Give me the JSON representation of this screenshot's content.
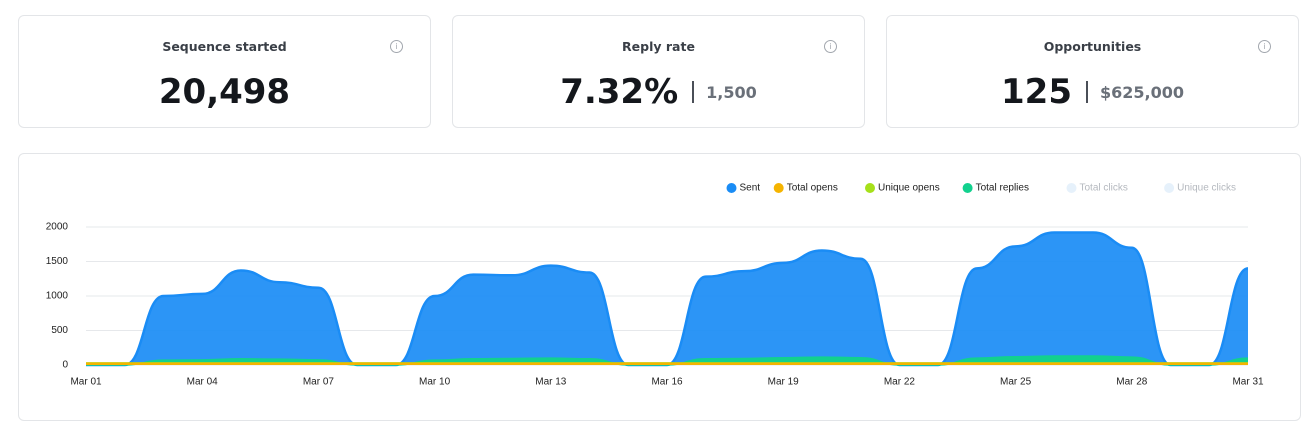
{
  "cards": [
    {
      "label": "Sequence started",
      "value": "20,498"
    },
    {
      "label": "Reply rate",
      "value": "7.32%",
      "secondary": "1,500"
    },
    {
      "label": "Opportunities",
      "value": "125",
      "secondary": "$625,000"
    }
  ],
  "chart_data": {
    "type": "area",
    "categories": [
      "Mar 01",
      null,
      null,
      "Mar 04",
      null,
      null,
      "Mar 07",
      null,
      null,
      "Mar 10",
      null,
      null,
      "Mar 13",
      null,
      null,
      "Mar 16",
      null,
      null,
      "Mar 19",
      null,
      null,
      "Mar 22",
      null,
      null,
      "Mar 25",
      null,
      null,
      "Mar 28",
      null,
      null,
      "Mar 31"
    ],
    "series": [
      {
        "name": "Sent",
        "color": "#1a8cf5",
        "values": [
          0,
          0,
          1000,
          1030,
          1370,
          1200,
          1120,
          0,
          0,
          1000,
          1310,
          1300,
          1440,
          1340,
          0,
          0,
          1280,
          1360,
          1480,
          1660,
          1540,
          0,
          0,
          1400,
          1720,
          1920,
          1920,
          1700,
          0,
          0,
          1400
        ]
      },
      {
        "name": "Total opens",
        "color": "#f5b400",
        "values": [
          25,
          25,
          25,
          25,
          25,
          25,
          25,
          25,
          25,
          25,
          25,
          25,
          25,
          25,
          25,
          25,
          25,
          25,
          25,
          25,
          25,
          25,
          25,
          25,
          25,
          25,
          25,
          25,
          25,
          25,
          25
        ]
      },
      {
        "name": "Unique opens",
        "color": "#a6e01a",
        "values": [
          30,
          30,
          30,
          30,
          30,
          30,
          30,
          30,
          30,
          30,
          30,
          30,
          30,
          30,
          30,
          30,
          30,
          30,
          30,
          30,
          30,
          30,
          30,
          30,
          30,
          30,
          30,
          30,
          30,
          30,
          30
        ]
      },
      {
        "name": "Total replies",
        "color": "#12d18e",
        "values": [
          0,
          0,
          70,
          75,
          90,
          85,
          75,
          0,
          0,
          70,
          90,
          95,
          100,
          90,
          0,
          0,
          90,
          95,
          105,
          115,
          105,
          0,
          0,
          100,
          120,
          130,
          130,
          115,
          0,
          0,
          100
        ]
      },
      {
        "name": "Total clicks",
        "color": "#e6f1fb",
        "visible": false
      },
      {
        "name": "Unique clicks",
        "color": "#e6f1fb",
        "visible": false
      }
    ],
    "ylim": [
      0,
      2000
    ],
    "yticks": [
      0,
      500,
      1000,
      1500,
      2000
    ],
    "grid": true,
    "legend": "top-right"
  }
}
